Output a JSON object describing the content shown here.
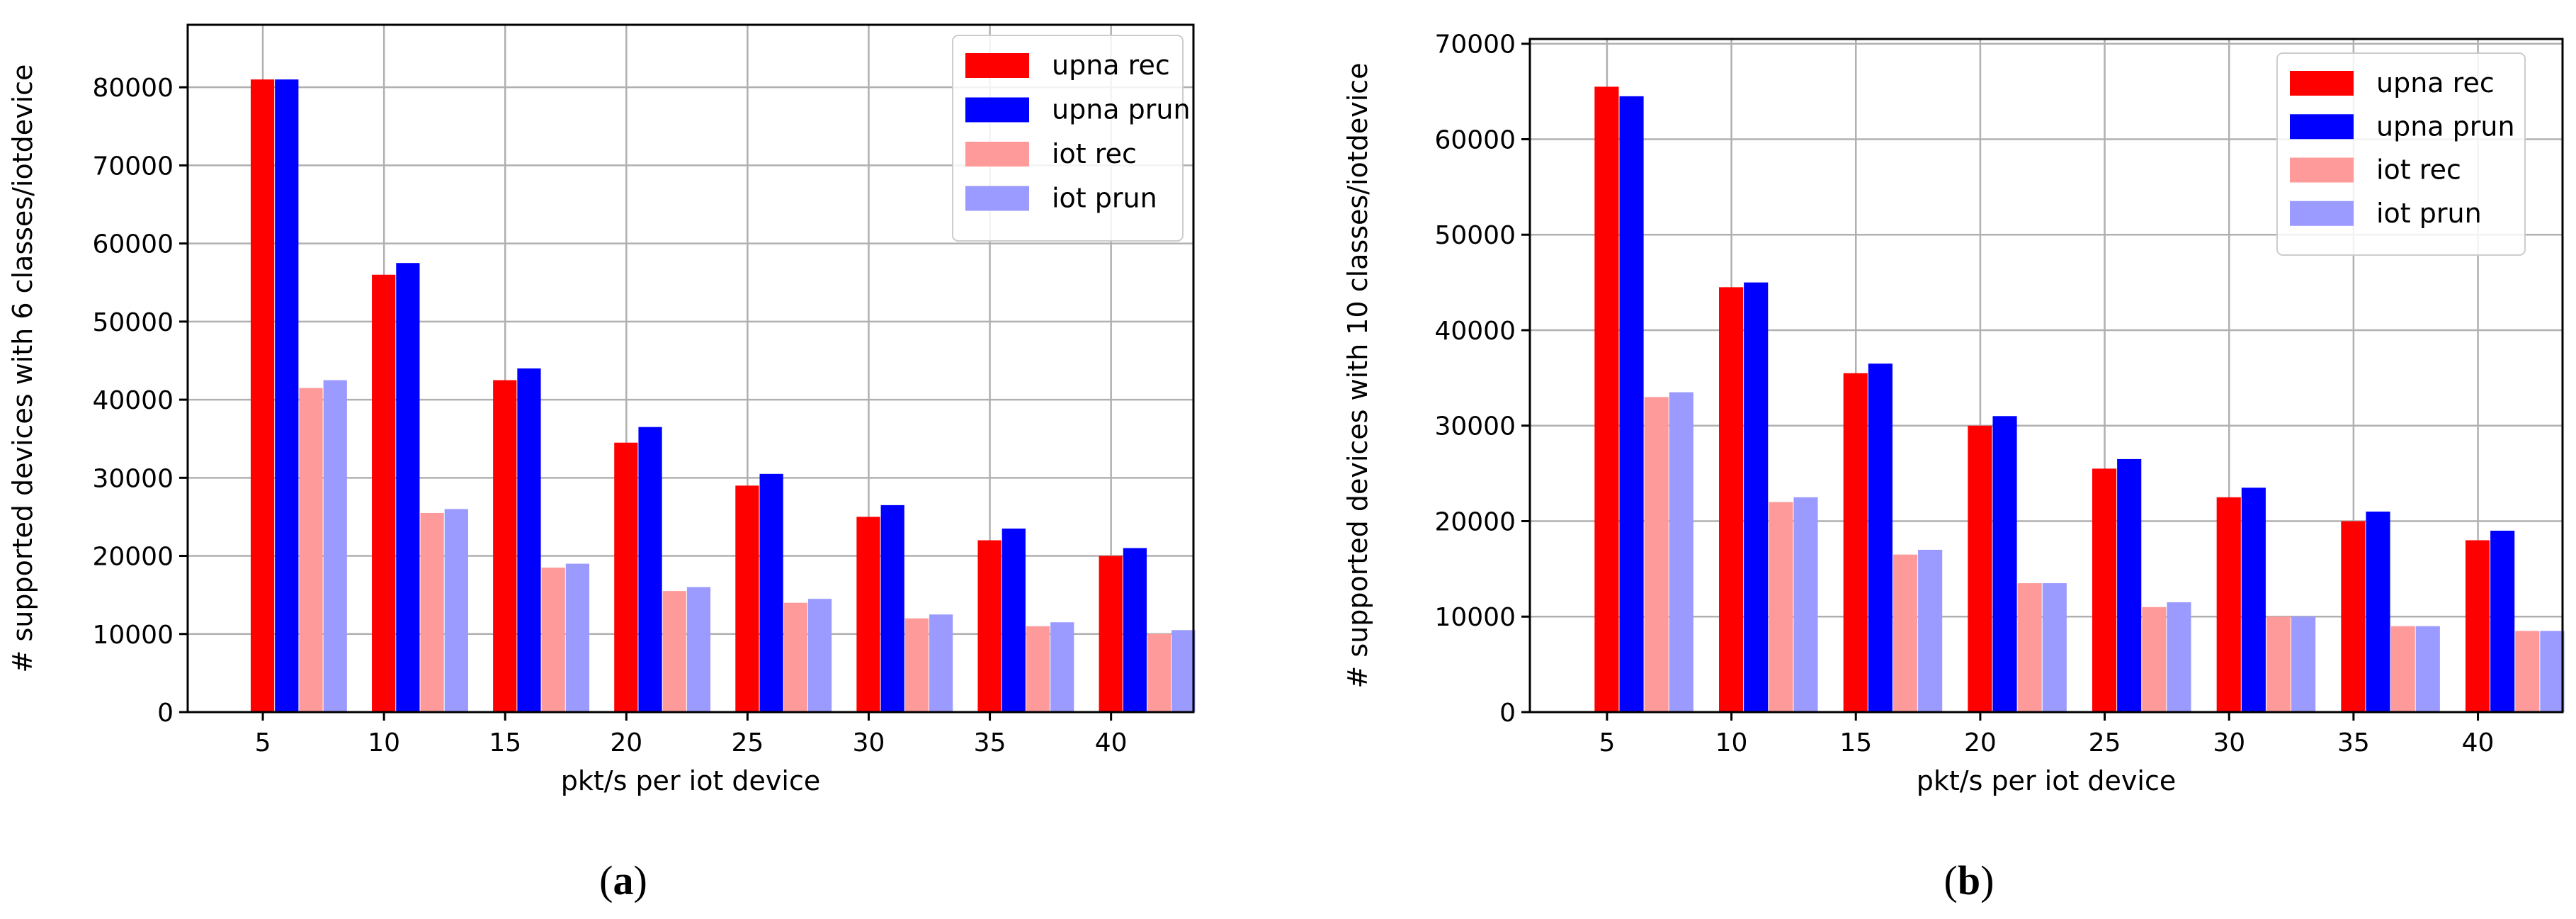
{
  "chart_data": [
    {
      "type": "bar",
      "panel_label": "(a)",
      "xlabel": "pkt/s per iot device",
      "ylabel": "# supported devices with 6 classes/iotdevice",
      "categories": [
        "5",
        "10",
        "15",
        "20",
        "25",
        "30",
        "35",
        "40"
      ],
      "ylim": [
        0,
        88000
      ],
      "yticks": [
        0,
        10000,
        20000,
        30000,
        40000,
        50000,
        60000,
        70000,
        80000
      ],
      "grid": true,
      "legend_position": "top-right",
      "series": [
        {
          "name": "upna rec",
          "color": "#ff0000",
          "values": [
            81000,
            56000,
            42500,
            34500,
            29000,
            25000,
            22000,
            20000
          ]
        },
        {
          "name": "upna prun",
          "color": "#0000ff",
          "values": [
            81000,
            57500,
            44000,
            36500,
            30500,
            26500,
            23500,
            21000
          ]
        },
        {
          "name": "iot rec",
          "color": "#ff9a9a",
          "values": [
            41500,
            25500,
            18500,
            15500,
            14000,
            12000,
            11000,
            10000
          ]
        },
        {
          "name": "iot prun",
          "color": "#9a9aff",
          "values": [
            42500,
            26000,
            19000,
            16000,
            14500,
            12500,
            11500,
            10500
          ]
        }
      ]
    },
    {
      "type": "bar",
      "panel_label": "(b)",
      "xlabel": "pkt/s per iot device",
      "ylabel": "# supported devices with 10 classes/iotdevice",
      "categories": [
        "5",
        "10",
        "15",
        "20",
        "25",
        "30",
        "35",
        "40"
      ],
      "ylim": [
        0,
        70500
      ],
      "yticks": [
        0,
        10000,
        20000,
        30000,
        40000,
        50000,
        60000,
        70000
      ],
      "grid": true,
      "legend_position": "top-right",
      "series": [
        {
          "name": "upna rec",
          "color": "#ff0000",
          "values": [
            65500,
            44500,
            35500,
            30000,
            25500,
            22500,
            20000,
            18000
          ]
        },
        {
          "name": "upna prun",
          "color": "#0000ff",
          "values": [
            64500,
            45000,
            36500,
            31000,
            26500,
            23500,
            21000,
            19000
          ]
        },
        {
          "name": "iot rec",
          "color": "#ff9a9a",
          "values": [
            33000,
            22000,
            16500,
            13500,
            11000,
            10000,
            9000,
            8500
          ]
        },
        {
          "name": "iot prun",
          "color": "#9a9aff",
          "values": [
            33500,
            22500,
            17000,
            13500,
            11500,
            10000,
            9000,
            8500
          ]
        }
      ]
    }
  ]
}
